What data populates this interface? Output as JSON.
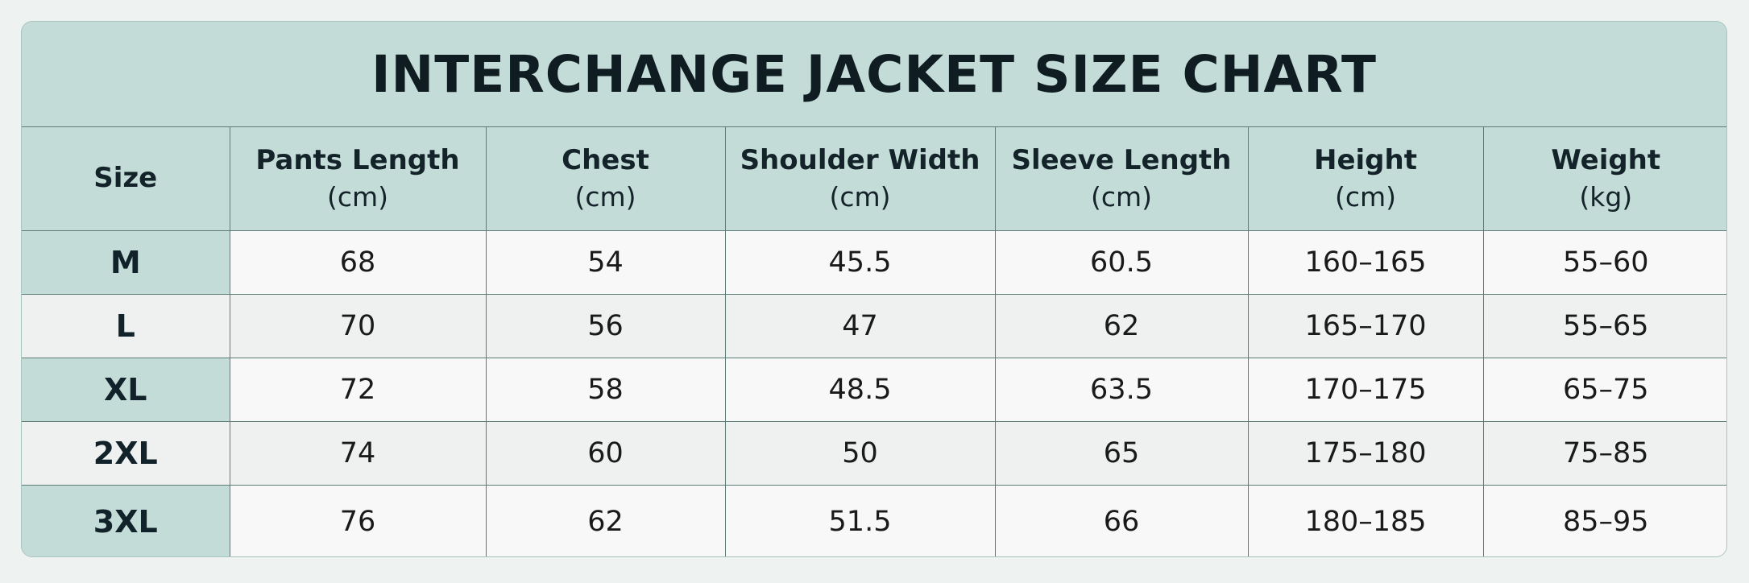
{
  "title": "INTERCHANGE JACKET SIZE CHART",
  "columns": [
    {
      "label": "Size",
      "unit": ""
    },
    {
      "label": "Pants Length",
      "unit": "(cm)"
    },
    {
      "label": "Chest",
      "unit": "(cm)"
    },
    {
      "label": "Shoulder Width",
      "unit": "(cm)"
    },
    {
      "label": "Sleeve Length",
      "unit": "(cm)"
    },
    {
      "label": "Height",
      "unit": "(cm)"
    },
    {
      "label": "Weight",
      "unit": "(kg)"
    }
  ],
  "rows": [
    [
      "M",
      "68",
      "54",
      "45.5",
      "60.5",
      "160–165",
      "55–60"
    ],
    [
      "L",
      "70",
      "56",
      "47",
      "62",
      "165–170",
      "55–65"
    ],
    [
      "XL",
      "72",
      "58",
      "48.5",
      "63.5",
      "170–175",
      "65–75"
    ],
    [
      "2XL",
      "74",
      "60",
      "50",
      "65",
      "175–180",
      "75–85"
    ],
    [
      "3XL",
      "76",
      "62",
      "51.5",
      "66",
      "180–185",
      "85–95"
    ]
  ],
  "colors": {
    "header_bg": "#c4dcd7",
    "row_bg": "#f7f8f7",
    "row_alt_bg": "#eef1ef",
    "grid_line": "#5d7c76",
    "page_bg": "#eef3f1"
  }
}
